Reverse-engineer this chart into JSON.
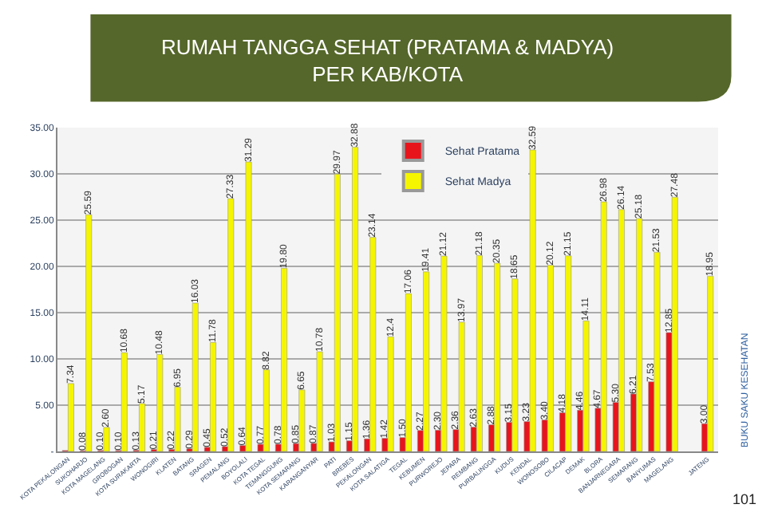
{
  "chart_data": {
    "type": "bar",
    "title": "RUMAH TANGGA SEHAT (PRATAMA & MADYA)\nPER KAB/KOTA",
    "categories": [
      "KOTA PEKALONGAN",
      "SUKOHARJO",
      "KOTA MAGELANG",
      "GROBOGAN",
      "KOTA SURAKARTA",
      "WONOGIRI",
      "KLATEN",
      "BATANG",
      "SRAGEN",
      "PEMALANG",
      "BOYOLALI",
      "KOTA TEGAL",
      "TEMANGGUNG",
      "KOTA SEMARANG",
      "KARANGANYAR",
      "PATI",
      "BREBES",
      "PEKALONGAN",
      "KOTA SALATIGA",
      "TEGAL",
      "KEBUMEN",
      "PURWOREJO",
      "JEPARA",
      "REMBANG",
      "PURBALINGGA",
      "KUDUS",
      "KENDAL",
      "WONOSOBO",
      "CILACAP",
      "DEMAK",
      "BLORA",
      "BANJARNEGARA",
      "SEMARANG",
      "BANYUMAS",
      "MAGELANG",
      null,
      "JATENG"
    ],
    "series": [
      {
        "name": "Sehat Pratama",
        "color": "#e8141c",
        "values": [
          0.1,
          0.08,
          0.1,
          0.1,
          0.13,
          0.21,
          0.22,
          0.29,
          0.45,
          0.52,
          0.64,
          0.77,
          0.78,
          0.85,
          0.87,
          1.03,
          1.15,
          1.36,
          1.42,
          1.5,
          2.27,
          2.3,
          2.36,
          2.63,
          2.88,
          3.15,
          3.23,
          3.4,
          4.18,
          4.46,
          4.67,
          5.3,
          6.21,
          7.53,
          12.85,
          null,
          3.0
        ],
        "value_labels": [
          null,
          "0.08",
          "0.10",
          "0.10",
          "0.13",
          "0.21",
          "0.22",
          "0.29",
          "0.45",
          "0.52",
          "0.64",
          "0.77",
          "0.78",
          "0.85",
          "0.87",
          "1.03",
          "1.15",
          "1.36",
          "1.42",
          "1.50",
          "2.27",
          "2.30",
          "2.36",
          "2.63",
          "2.88",
          "3.15",
          "3.23",
          "3.40",
          "4.18",
          "4.46",
          "4.67",
          "5.30",
          "6.21",
          "7.53",
          "12.85",
          null,
          "3.00"
        ]
      },
      {
        "name": "Sehat Madya",
        "color": "#f5f500",
        "values": [
          7.34,
          25.59,
          2.6,
          10.68,
          5.17,
          10.48,
          6.95,
          16.03,
          11.78,
          27.33,
          31.29,
          8.82,
          19.8,
          6.65,
          10.78,
          29.97,
          32.88,
          23.14,
          12.4,
          17.06,
          19.41,
          21.12,
          13.97,
          21.18,
          20.35,
          18.65,
          32.59,
          20.12,
          21.15,
          14.11,
          26.98,
          26.14,
          25.18,
          21.53,
          27.48,
          null,
          18.95
        ],
        "value_labels": [
          "7.34",
          "25.59",
          "2.60",
          "10.68",
          "5.17",
          "10.48",
          "6.95",
          "16.03",
          "11.78",
          "27.33",
          "31.29",
          "8.82",
          "19.80",
          "6.65",
          "10.78",
          "29.97",
          "32.88",
          "23.14",
          "12.4",
          "17.06",
          "19.41",
          "21.12",
          "13.97",
          "21.18",
          "20.35",
          "18.65",
          "32.59",
          "20.12",
          "21.15",
          "14.11",
          "26.98",
          "26.14",
          "25.18",
          "21.53",
          "27.48",
          null,
          "18.95"
        ]
      }
    ],
    "ylim": [
      0,
      35
    ],
    "yticks": [
      {
        "value": 0,
        "label": "-"
      },
      {
        "value": 5,
        "label": "5.00"
      },
      {
        "value": 10,
        "label": "10.00"
      },
      {
        "value": 15,
        "label": "15.00"
      },
      {
        "value": 20,
        "label": "20.00"
      },
      {
        "value": 25,
        "label": "25.00"
      },
      {
        "value": 30,
        "label": "30.00"
      },
      {
        "value": 35,
        "label": "35.00"
      }
    ],
    "grid": "y",
    "legend": "top right",
    "annotations": [
      "BUKU SAKU KESEHATAN",
      "101"
    ]
  }
}
